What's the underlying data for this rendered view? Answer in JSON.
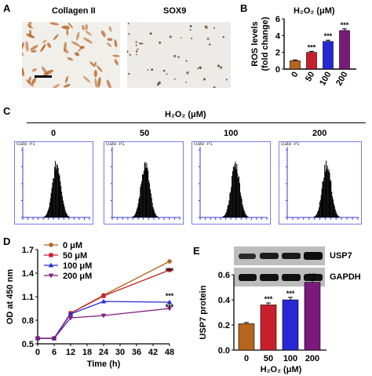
{
  "panels": {
    "A": {
      "letter": "A",
      "left_label": "Collagen II",
      "right_label": "SOX9"
    },
    "B": {
      "letter": "B",
      "h2o2_title": "H₂O₂ (μM)"
    },
    "C": {
      "letter": "C",
      "h2o2_title": "H₂O₂ (μM)",
      "columns": [
        "0",
        "50",
        "100",
        "200"
      ],
      "gate_label": "Gate: P1"
    },
    "D": {
      "letter": "D"
    },
    "E": {
      "letter": "E",
      "blot_labels": [
        "USP7",
        "GAPDH"
      ]
    }
  },
  "colors": {
    "c0": "#b5651d",
    "c50": "#c8202a",
    "c100": "#2727d6",
    "c200": "#7b1a7b",
    "flow_axis": "#3b3bd8"
  },
  "chart_data": [
    {
      "id": "B",
      "type": "bar",
      "categories": [
        "0",
        "50",
        "100",
        "200"
      ],
      "values": [
        1.0,
        2.0,
        3.3,
        4.6
      ],
      "errors": [
        0.1,
        0.12,
        0.15,
        0.2
      ],
      "significance": [
        "",
        "***",
        "***",
        "***"
      ],
      "ylabel": "ROS levels\n(fold change)",
      "xlabel": "",
      "ylim": [
        0,
        6
      ],
      "yticks": [
        0,
        2,
        4,
        6
      ]
    },
    {
      "id": "D",
      "type": "line",
      "xlabel": "Time (h)",
      "ylabel": "OD at 450 nm",
      "x": [
        0,
        6,
        12,
        24,
        48
      ],
      "xticks": [
        0,
        6,
        12,
        18,
        24,
        30,
        36,
        42,
        48
      ],
      "ylim": [
        0.5,
        1.7
      ],
      "yticks": [
        0.5,
        0.8,
        1.1,
        1.4,
        1.7
      ],
      "series": [
        {
          "name": "0 μM",
          "marker": "circle",
          "values": [
            0.57,
            0.57,
            0.89,
            1.12,
            1.55
          ]
        },
        {
          "name": "50 μM",
          "marker": "square",
          "values": [
            0.57,
            0.57,
            0.89,
            1.11,
            1.44
          ]
        },
        {
          "name": "100 μM",
          "marker": "triangle",
          "values": [
            0.57,
            0.57,
            0.88,
            1.04,
            1.03
          ]
        },
        {
          "name": "200 μM",
          "marker": "triangle-down",
          "values": [
            0.57,
            0.57,
            0.83,
            0.86,
            0.95
          ]
        }
      ],
      "annotations": [
        "***",
        "***",
        "***"
      ],
      "legend_position": "top-left"
    },
    {
      "id": "E",
      "type": "bar",
      "categories": [
        "0",
        "50",
        "100",
        "200"
      ],
      "values": [
        0.21,
        0.36,
        0.4,
        0.54
      ],
      "errors": [
        0.01,
        0.015,
        0.02,
        0.02
      ],
      "significance": [
        "",
        "***",
        "***",
        "***"
      ],
      "ylabel": "USP7 protein",
      "xlabel": "H₂O₂ (μM)",
      "ylim": [
        0.0,
        0.6
      ],
      "yticks": [
        0.0,
        0.2,
        0.4,
        0.6
      ]
    }
  ]
}
